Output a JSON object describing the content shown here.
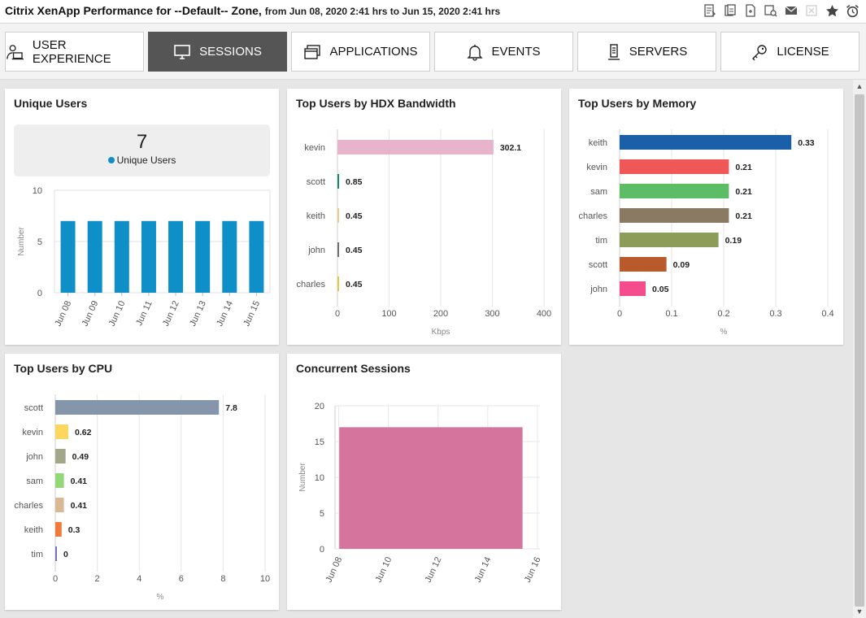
{
  "window": {
    "title": "Citrix XenApp Performance for --Default-- Zone,",
    "range": "from Jun 08, 2020 2:41 hrs to Jun 15, 2020 2:41 hrs",
    "icons": [
      "export-pdf-icon",
      "export-csv-icon",
      "export-excel-icon",
      "schedule-report-icon",
      "email-icon",
      "disabled-export-icon",
      "favorite-star-icon",
      "alarm-clock-icon"
    ]
  },
  "tabs": [
    {
      "label": "USER EXPERIENCE",
      "icon": "user-laptop-icon",
      "active": false
    },
    {
      "label": "SESSIONS",
      "icon": "monitor-icon",
      "active": true
    },
    {
      "label": "APPLICATIONS",
      "icon": "windows-icon",
      "active": false
    },
    {
      "label": "EVENTS",
      "icon": "bell-icon",
      "active": false
    },
    {
      "label": "SERVERS",
      "icon": "server-icon",
      "active": false
    },
    {
      "label": "LICENSE",
      "icon": "key-icon",
      "active": false
    }
  ],
  "cards": {
    "unique_users": {
      "title": "Unique Users",
      "count": "7",
      "legend": "Unique Users"
    },
    "hdx": {
      "title": "Top Users by HDX Bandwidth"
    },
    "memory": {
      "title": "Top Users by Memory"
    },
    "cpu": {
      "title": "Top Users by CPU"
    },
    "sessions": {
      "title": "Concurrent Sessions"
    }
  },
  "colors": {
    "active_tab": "#555555",
    "unique_bar": "#0e8fc7",
    "area_fill": "#d5749c"
  },
  "chart_data": [
    {
      "id": "unique_users",
      "type": "bar",
      "categories": [
        "Jun 08",
        "Jun 09",
        "Jun 10",
        "Jun 11",
        "Jun 12",
        "Jun 13",
        "Jun 14",
        "Jun 15"
      ],
      "values": [
        7,
        7,
        7,
        7,
        7,
        7,
        7,
        7
      ],
      "ylabel": "Number",
      "ylim": [
        0,
        10
      ],
      "yticks": [
        0,
        5,
        10
      ],
      "color": "#0e8fc7",
      "grid": true
    },
    {
      "id": "hdx",
      "type": "bar",
      "orientation": "horizontal",
      "categories": [
        "kevin",
        "scott",
        "keith",
        "john",
        "charles"
      ],
      "values": [
        302.1,
        0.85,
        0.45,
        0.45,
        0.45
      ],
      "labels": [
        "302.1",
        "0.85",
        "0.45",
        "0.45",
        "0.45"
      ],
      "colors": [
        "#e8b4cc",
        "#128a6a",
        "#f2c98c",
        "#6f6f6f",
        "#e8c64b"
      ],
      "xlabel": "Kbps",
      "xlim": [
        0,
        400
      ],
      "xticks": [
        0,
        100,
        200,
        300,
        400
      ],
      "grid": true
    },
    {
      "id": "memory",
      "type": "bar",
      "orientation": "horizontal",
      "categories": [
        "keith",
        "kevin",
        "sam",
        "charles",
        "tim",
        "scott",
        "john"
      ],
      "values": [
        0.33,
        0.21,
        0.21,
        0.21,
        0.19,
        0.09,
        0.05
      ],
      "labels": [
        "0.33",
        "0.21",
        "0.21",
        "0.21",
        "0.19",
        "0.09",
        "0.05"
      ],
      "colors": [
        "#1a5fa8",
        "#f05757",
        "#5cbd66",
        "#8a7a64",
        "#8e9c5a",
        "#b85a2c",
        "#f54c8e"
      ],
      "xlabel": "%",
      "xlim": [
        0,
        0.4
      ],
      "xticks": [
        "0",
        "0.1",
        "0.2",
        "0.3",
        "0.4"
      ],
      "grid": true
    },
    {
      "id": "cpu",
      "type": "bar",
      "orientation": "horizontal",
      "categories": [
        "scott",
        "kevin",
        "john",
        "sam",
        "charles",
        "keith",
        "tim"
      ],
      "values": [
        7.8,
        0.62,
        0.49,
        0.41,
        0.41,
        0.3,
        0
      ],
      "labels": [
        "7.8",
        "0.62",
        "0.49",
        "0.41",
        "0.41",
        "0.3",
        "0"
      ],
      "colors": [
        "#8596ab",
        "#fbd760",
        "#a3a789",
        "#93d877",
        "#d9b995",
        "#f07a3c",
        "#7a6fc4"
      ],
      "xlabel": "%",
      "xlim": [
        0,
        10
      ],
      "xticks": [
        0,
        2,
        4,
        6,
        8,
        10
      ],
      "grid": true
    },
    {
      "id": "sessions",
      "type": "area",
      "x": [
        "Jun 08",
        "Jun 15"
      ],
      "values": [
        17,
        17
      ],
      "ylabel": "Number",
      "ylim": [
        0,
        20
      ],
      "yticks": [
        0,
        5,
        10,
        15,
        20
      ],
      "xticks": [
        "Jun 08",
        "Jun 10",
        "Jun 12",
        "Jun 14",
        "Jun 16"
      ],
      "color": "#d5749c",
      "grid": true
    }
  ]
}
